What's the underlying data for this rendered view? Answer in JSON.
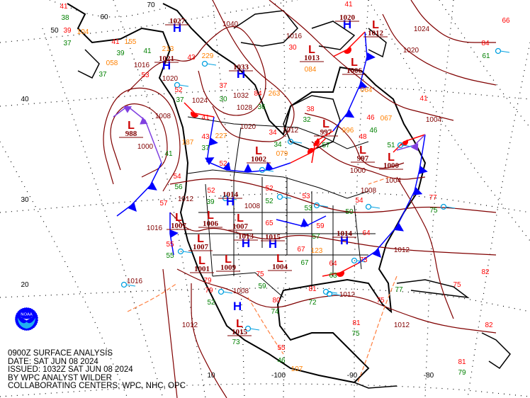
{
  "map": {
    "colors": {
      "isobar": "#800000",
      "high": "#0000ff",
      "low": "#cc0000",
      "cold_front": "#0000ff",
      "warm_front": "#ff0000",
      "occluded_front": "#8040e0",
      "trough": "#ff8040",
      "temperature": "#ff0000",
      "dewpoint": "#008000",
      "pressure": "#ff8000",
      "station": "#00a0e0",
      "coastline": "#000000"
    },
    "grid_labels": [
      "70",
      "60",
      "50",
      "40",
      "30",
      "20",
      "10",
      "-100",
      "-90",
      "-80"
    ],
    "centers": [
      {
        "type": "H",
        "value": "1027"
      },
      {
        "type": "H",
        "value": "1021"
      },
      {
        "type": "L",
        "value": "988"
      },
      {
        "type": "H",
        "value": "1033"
      },
      {
        "type": "H",
        "value": "1020"
      },
      {
        "type": "L",
        "value": "1012"
      },
      {
        "type": "L",
        "value": "1013"
      },
      {
        "type": "L",
        "value": "1006"
      },
      {
        "type": "L",
        "value": "997"
      },
      {
        "type": "L",
        "value": "1002"
      },
      {
        "type": "L",
        "value": "997"
      },
      {
        "type": "L",
        "value": "1000"
      },
      {
        "type": "H",
        "value": "1014"
      },
      {
        "type": "L",
        "value": "1006"
      },
      {
        "type": "L",
        "value": "1007"
      },
      {
        "type": "L",
        "value": "1007"
      },
      {
        "type": "L",
        "value": "1007"
      },
      {
        "type": "H",
        "value": "1013"
      },
      {
        "type": "L",
        "value": "1009"
      },
      {
        "type": "H",
        "value": "1015"
      },
      {
        "type": "L",
        "value": "1004"
      },
      {
        "type": "L",
        "value": "1001"
      },
      {
        "type": "H",
        "value": "1014"
      },
      {
        "type": "H",
        "value": ""
      },
      {
        "type": "L",
        "value": "1015"
      }
    ],
    "isobar_labels": [
      "1040",
      "1016",
      "1024",
      "1020",
      "1028",
      "1032",
      "1024",
      "1016",
      "1020",
      "1000",
      "1008",
      "1020",
      "1012",
      "1004",
      "1000",
      "1004",
      "1008",
      "1012",
      "1008",
      "1016",
      "1012",
      "1016",
      "1008",
      "1012",
      "1012",
      "1012"
    ],
    "temperatures": [
      "41",
      "39",
      "53",
      "41",
      "43",
      "52",
      "37",
      "84",
      "41",
      "34",
      "38",
      "43",
      "52",
      "54",
      "52",
      "52",
      "53",
      "54",
      "59",
      "64",
      "65",
      "67",
      "73",
      "64",
      "79",
      "79",
      "75",
      "80",
      "81",
      "81",
      "75",
      "77",
      "41",
      "48",
      "46",
      "30",
      "57",
      "55",
      "66",
      "84",
      "82",
      "82",
      "81",
      "75",
      "55",
      "41"
    ],
    "dewpoints": [
      "38",
      "37",
      "39",
      "37",
      "41",
      "37",
      "37",
      "30",
      "36",
      "41",
      "56",
      "55",
      "39",
      "52",
      "53",
      "50",
      "57",
      "67",
      "63",
      "72",
      "74",
      "59",
      "52",
      "73",
      "75",
      "77",
      "75",
      "61",
      "79",
      "46",
      "51",
      "46",
      "57",
      "32",
      "34"
    ],
    "pressures": [
      "104",
      "058",
      "155",
      "213",
      "229",
      "227",
      "187",
      "079",
      "263",
      "084",
      "064",
      "067",
      "996",
      "107",
      "123"
    ]
  },
  "info": {
    "line1": "0900Z SURFACE ANALYSIS",
    "line2": "DATE: SAT JUN 08 2024",
    "line3": "ISSUED: 1032Z SAT JUN 08 2024",
    "line4": "BY WPC ANALYST WILDER",
    "line5": "COLLABORATING CENTERS: WPC, NHC, OPC"
  },
  "logo": {
    "text": "NOAA"
  }
}
